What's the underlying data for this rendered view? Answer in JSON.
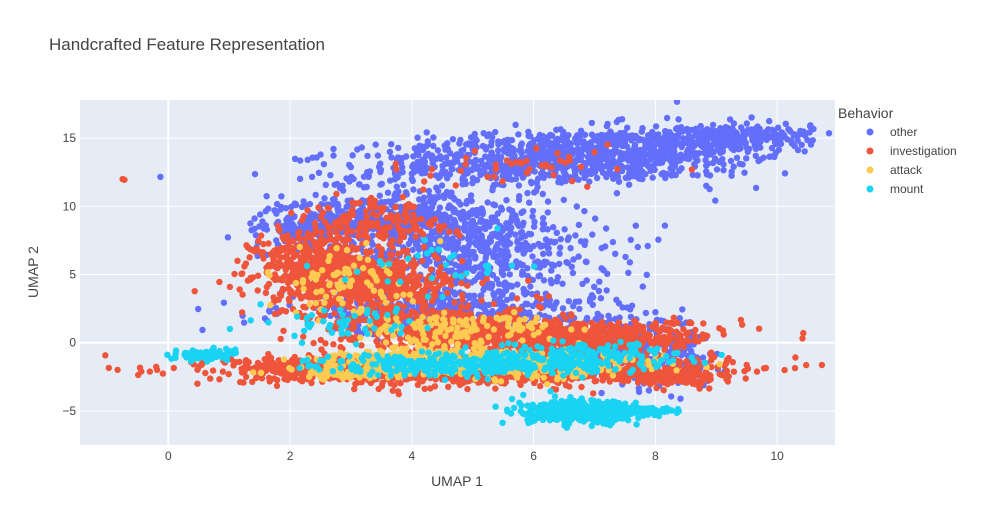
{
  "chart_data": {
    "type": "scatter",
    "title": "Handcrafted Feature Representation",
    "xlabel": "UMAP 1",
    "ylabel": "UMAP 2",
    "xlim": [
      -1.45,
      10.95
    ],
    "ylim": [
      -7.5,
      17.8
    ],
    "xticks": [
      0,
      2,
      4,
      6,
      8,
      10
    ],
    "yticks": [
      -5,
      0,
      5,
      10,
      15
    ],
    "grid": true,
    "legend": {
      "title": "Behavior",
      "position": "top-right"
    },
    "series": [
      {
        "name": "other",
        "color": "#636efa",
        "clusters": [
          {
            "cx": 6.6,
            "cy": 13.6,
            "sx": 1.7,
            "sy": 1.0,
            "rot": 16,
            "n": 1100
          },
          {
            "cx": 9.3,
            "cy": 15.1,
            "sx": 0.7,
            "sy": 0.4,
            "rot": 10,
            "n": 250
          },
          {
            "cx": 3.6,
            "cy": 9.2,
            "sx": 1.0,
            "sy": 0.9,
            "rot": 25,
            "n": 500
          },
          {
            "cx": 5.0,
            "cy": 6.5,
            "sx": 1.1,
            "sy": 1.8,
            "rot": 0,
            "n": 600
          },
          {
            "cx": 4.5,
            "cy": 2.3,
            "sx": 1.3,
            "sy": 0.8,
            "rot": 0,
            "n": 450
          },
          {
            "cx": 7.2,
            "cy": 0.2,
            "sx": 0.9,
            "sy": 0.8,
            "rot": 0,
            "n": 250
          },
          {
            "cx": 8.1,
            "cy": -1.6,
            "sx": 0.4,
            "sy": 0.9,
            "rot": 0,
            "n": 150
          },
          {
            "cx": 2.3,
            "cy": 8.1,
            "sx": 0.35,
            "sy": 0.7,
            "rot": 0,
            "n": 120
          }
        ]
      },
      {
        "name": "investigation",
        "color": "#ef553b",
        "clusters": [
          {
            "cx": 2.6,
            "cy": 5.7,
            "sx": 0.6,
            "sy": 1.3,
            "rot": 0,
            "n": 500
          },
          {
            "cx": 3.3,
            "cy": 4.2,
            "sx": 0.8,
            "sy": 1.0,
            "rot": 0,
            "n": 400
          },
          {
            "cx": 5.1,
            "cy": -2.0,
            "sx": 1.9,
            "sy": 0.5,
            "rot": 0,
            "n": 1300
          },
          {
            "cx": 6.6,
            "cy": 0.4,
            "sx": 1.2,
            "sy": 0.6,
            "rot": 0,
            "n": 600
          },
          {
            "cx": 4.5,
            "cy": 1.0,
            "sx": 1.0,
            "sy": 0.8,
            "rot": 0,
            "n": 450
          },
          {
            "cx": 2.4,
            "cy": -1.8,
            "sx": 0.5,
            "sy": 0.3,
            "rot": 0,
            "n": 300
          },
          {
            "cx": 8.3,
            "cy": -2.5,
            "sx": 0.3,
            "sy": 0.25,
            "rot": 0,
            "n": 150
          },
          {
            "cx": 3.5,
            "cy": 9.0,
            "sx": 0.6,
            "sy": 0.9,
            "rot": 0,
            "n": 120
          },
          {
            "cx": 5.8,
            "cy": 13.0,
            "sx": 0.9,
            "sy": 0.7,
            "rot": 0,
            "n": 40
          }
        ]
      },
      {
        "name": "attack",
        "color": "#fecb52",
        "clusters": [
          {
            "cx": 4.3,
            "cy": -1.4,
            "sx": 0.9,
            "sy": 0.5,
            "rot": 0,
            "n": 350
          },
          {
            "cx": 6.3,
            "cy": -1.6,
            "sx": 0.9,
            "sy": 0.5,
            "rot": 0,
            "n": 220
          },
          {
            "cx": 4.7,
            "cy": 1.0,
            "sx": 0.8,
            "sy": 0.6,
            "rot": 0,
            "n": 130
          },
          {
            "cx": 2.8,
            "cy": 4.5,
            "sx": 0.6,
            "sy": 1.2,
            "rot": 0,
            "n": 80
          },
          {
            "cx": 2.8,
            "cy": -2.2,
            "sx": 0.3,
            "sy": 0.25,
            "rot": 0,
            "n": 60
          }
        ]
      },
      {
        "name": "mount",
        "color": "#19d3f3",
        "clusters": [
          {
            "cx": 6.8,
            "cy": -5.1,
            "sx": 0.45,
            "sy": 0.4,
            "rot": 0,
            "n": 450
          },
          {
            "cx": 7.6,
            "cy": -5.0,
            "sx": 0.4,
            "sy": 0.15,
            "rot": 0,
            "n": 120
          },
          {
            "cx": 4.9,
            "cy": -1.6,
            "sx": 1.2,
            "sy": 0.4,
            "rot": 0,
            "n": 320
          },
          {
            "cx": 6.8,
            "cy": -1.0,
            "sx": 0.8,
            "sy": 0.5,
            "rot": 0,
            "n": 160
          },
          {
            "cx": 0.6,
            "cy": -0.9,
            "sx": 0.22,
            "sy": 0.2,
            "rot": 0,
            "n": 90
          },
          {
            "cx": 3.2,
            "cy": 1.4,
            "sx": 0.7,
            "sy": 0.6,
            "rot": 0,
            "n": 50
          },
          {
            "cx": 4.3,
            "cy": 5.5,
            "sx": 0.8,
            "sy": 1.2,
            "rot": 0,
            "n": 30
          }
        ]
      }
    ],
    "points": [
      {
        "series": "investigation",
        "x": -0.75,
        "y": 12.0
      },
      {
        "series": "investigation",
        "x": -0.72,
        "y": 11.95
      },
      {
        "series": "investigation",
        "x": 6.05,
        "y": 3.4
      },
      {
        "series": "investigation",
        "x": 6.25,
        "y": 3.4
      },
      {
        "series": "investigation",
        "x": 8.6,
        "y": 12.7
      },
      {
        "series": "mount",
        "x": 1.1,
        "y": -0.5
      },
      {
        "series": "mount",
        "x": 0.95,
        "y": -0.45
      },
      {
        "series": "other",
        "x": 8.9,
        "y": -0.8
      },
      {
        "series": "other",
        "x": 8.4,
        "y": 1.8
      },
      {
        "series": "other",
        "x": 10.2,
        "y": 15.6
      },
      {
        "series": "other",
        "x": 1.8,
        "y": 7.2
      }
    ]
  }
}
